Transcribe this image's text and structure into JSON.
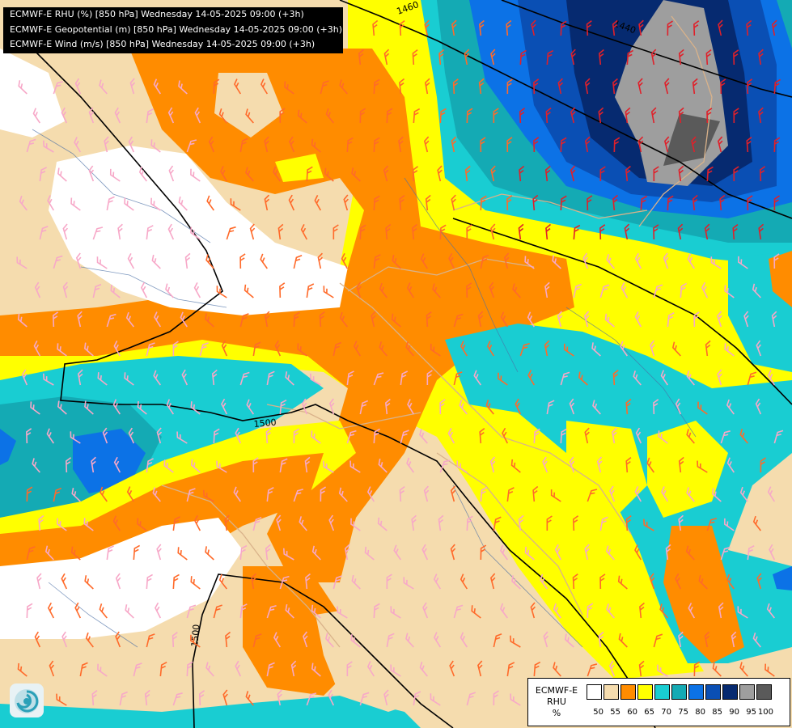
{
  "header": {
    "lines": [
      "ECMWF-E RHU (%) [850 hPa] Wednesday 14-05-2025 09:00 (+3h)",
      "ECMWF-E Geopotential (m) [850 hPa] Wednesday 14-05-2025 09:00 (+3h)",
      "ECMWF-E Wind (m/s) [850 hPa] Wednesday 14-05-2025 09:00 (+3h)"
    ]
  },
  "legend": {
    "title_lines": [
      "ECMWF-E",
      "RHU",
      "%"
    ],
    "colors": [
      "#ffffff",
      "#f5dcae",
      "#ff8c00",
      "#ffff00",
      "#19cdd2",
      "#14aab4",
      "#0c72e6",
      "#0a4fb4",
      "#062a70",
      "#9e9e9e",
      "#5a5a5a"
    ],
    "ticks": [
      "50",
      "55",
      "60",
      "65",
      "70",
      "75",
      "80",
      "85",
      "90",
      "95",
      "100"
    ]
  },
  "contours": {
    "labels": [
      "1440",
      "1460",
      "1500",
      "1500"
    ]
  },
  "icons": {
    "logo": "logo-icon"
  }
}
